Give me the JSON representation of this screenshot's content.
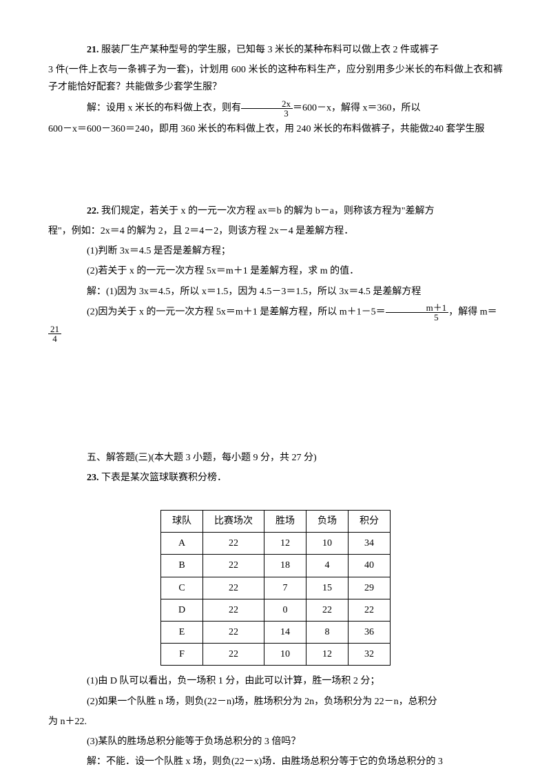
{
  "q21": {
    "number": "21.",
    "text1": "服装厂生产某种型号的学生服，已知每 3 米长的某种布料可以做上衣 2 件或裤子",
    "text2": "3 件(一件上衣与一条裤子为一套)，计划用 600 米长的这种布料生产，应分别用多少米长的布料做上衣和裤子才能恰好配套？共能做多少套学生服？",
    "sol1_pre": "解：设用 x 米长的布料做上衣，则有",
    "frac1_num": "2x",
    "frac1_den": "3",
    "sol1_post": "＝600－x，解得 x＝360，所以",
    "sol2": "600－x＝600－360＝240，即用 360 米长的布料做上衣，用 240 米长的布料做裤子，共能做240 套学生服"
  },
  "q22": {
    "number": "22.",
    "text1": "我们规定，若关于 x 的一元一次方程 ax＝b 的解为 b－a，则称该方程为\"差解方",
    "text2": "程\"，例如：2x＝4 的解为 2，且 2＝4－2，则该方程 2x－4 是差解方程．",
    "sub1": "(1)判断 3x＝4.5 是否是差解方程；",
    "sub2": "(2)若关于 x 的一元一次方程 5x＝m＋1 是差解方程，求 m 的值．",
    "sol1": "解：(1)因为 3x＝4.5，所以 x＝1.5，因为 4.5－3＝1.5，所以 3x＝4.5 是差解方程",
    "sol2_pre": "(2)因为关于 x 的一元一次方程 5x＝m＋1 是差解方程，所以 m＋1－5＝",
    "frac2_num": "m＋1",
    "frac2_den": "5",
    "sol2_post": "，解得 m＝",
    "frac3_num": "21",
    "frac3_den": "4"
  },
  "section5": {
    "title": "五、解答题(三)(本大题 3 小题，每小题 9 分，共 27 分)"
  },
  "q23": {
    "number": "23.",
    "text1": "下表是某次篮球联赛积分榜．",
    "table": {
      "headers": [
        "球队",
        "比赛场次",
        "胜场",
        "负场",
        "积分"
      ],
      "rows": [
        [
          "A",
          "22",
          "12",
          "10",
          "34"
        ],
        [
          "B",
          "22",
          "18",
          "4",
          "40"
        ],
        [
          "C",
          "22",
          "7",
          "15",
          "29"
        ],
        [
          "D",
          "22",
          "0",
          "22",
          "22"
        ],
        [
          "E",
          "22",
          "14",
          "8",
          "36"
        ],
        [
          "F",
          "22",
          "10",
          "12",
          "32"
        ]
      ]
    },
    "sub1": "(1)由 D 队可以看出，负一场积 1 分，由此可以计算，胜一场积 2 分；",
    "sub2": "(2)如果一个队胜 n 场，则负(22－n)场，胜场积分为 2n，负场积分为 22－n，总积分",
    "sub2_cont": "为 n＋22.",
    "sub3": "(3)某队的胜场总积分能等于负场总积分的 3 倍吗？",
    "sol": "解：不能．设一个队胜 x 场，则负(22－x)场．由胜场总积分等于它的负场总积分的 3"
  }
}
